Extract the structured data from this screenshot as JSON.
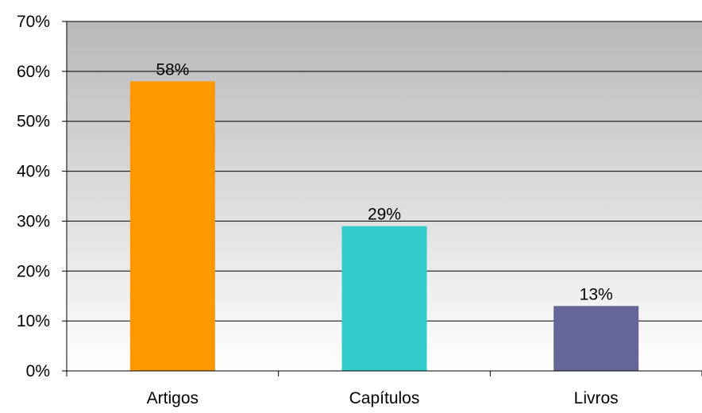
{
  "chart_data": {
    "type": "bar",
    "categories": [
      "Artigos",
      "Capítulos",
      "Livros"
    ],
    "values": [
      58,
      29,
      13
    ],
    "value_labels": [
      "58%",
      "29%",
      "13%"
    ],
    "bar_colors": [
      "#FF9900",
      "#33CCCC",
      "#666699"
    ],
    "ylim": [
      0,
      70
    ],
    "yticks": [
      0,
      10,
      20,
      30,
      40,
      50,
      60,
      70
    ],
    "ytick_labels": [
      "0%",
      "10%",
      "20%",
      "30%",
      "40%",
      "50%",
      "60%",
      "70%"
    ],
    "grid": true,
    "legend": "none",
    "plot_background": {
      "gradient_top": "#B8B8B8",
      "gradient_bottom": "#FFFFFF"
    },
    "title": "",
    "xlabel": "",
    "ylabel": ""
  }
}
